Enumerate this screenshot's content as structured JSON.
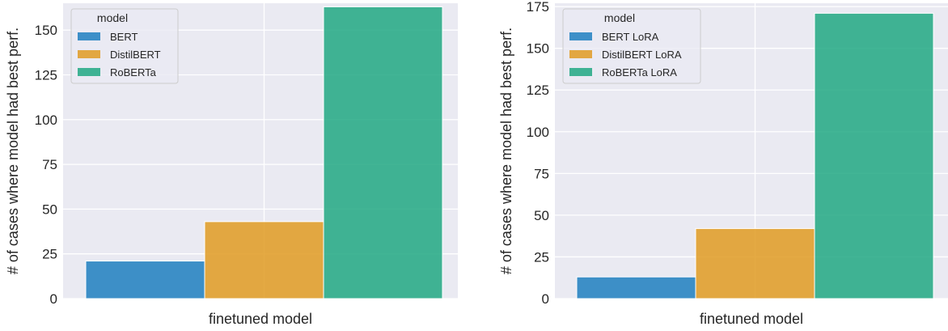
{
  "chart_data": [
    {
      "type": "bar",
      "xlabel": "finetuned model",
      "ylabel": "# of cases where model had best perf.",
      "ylim": [
        0,
        165
      ],
      "yticks": [
        0,
        25,
        50,
        75,
        100,
        125,
        150
      ],
      "grid": true,
      "legend": {
        "title": "model",
        "placement": "top-left"
      },
      "series": [
        {
          "name": "BERT",
          "value": 21,
          "color": "#1f7fbf"
        },
        {
          "name": "DistilBERT",
          "value": 43,
          "color": "#e09b22"
        },
        {
          "name": "RoBERTa",
          "value": 163,
          "color": "#21a882"
        }
      ]
    },
    {
      "type": "bar",
      "xlabel": "finetuned model",
      "ylabel": "# of cases where model had best perf.",
      "ylim": [
        0,
        177
      ],
      "yticks": [
        0,
        25,
        50,
        75,
        100,
        125,
        150,
        175
      ],
      "grid": true,
      "legend": {
        "title": "model",
        "placement": "top-left"
      },
      "series": [
        {
          "name": "BERT LoRA",
          "value": 13,
          "color": "#1f7fbf"
        },
        {
          "name": "DistilBERT LoRA",
          "value": 42,
          "color": "#e09b22"
        },
        {
          "name": "RoBERTa LoRA",
          "value": 171,
          "color": "#21a882"
        }
      ]
    }
  ]
}
